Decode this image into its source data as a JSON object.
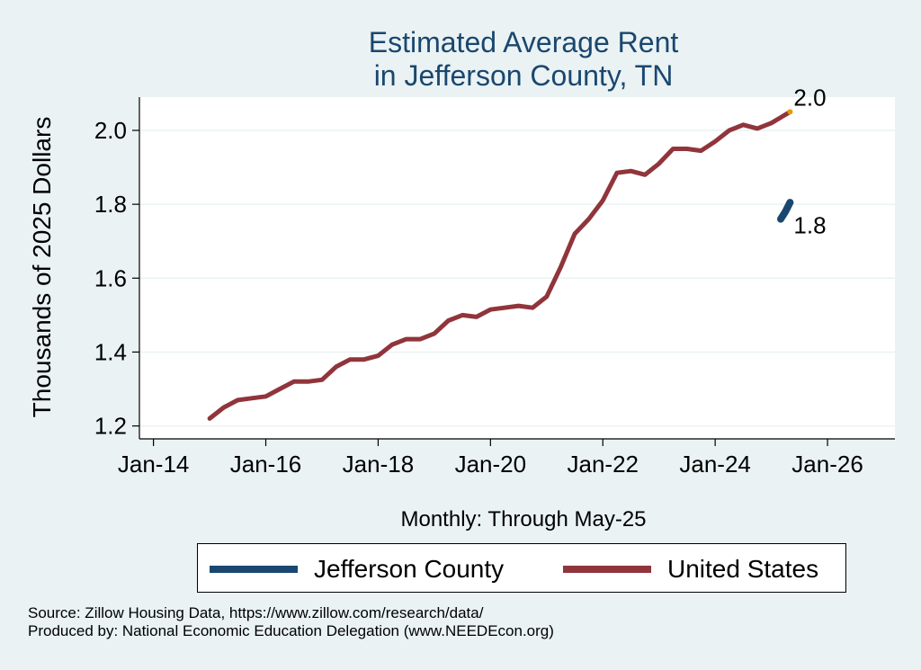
{
  "chart_data": {
    "type": "line",
    "title": [
      "Estimated Average Rent",
      "in Jefferson County, TN"
    ],
    "xlabel": "Monthly: Through May-25",
    "ylabel": "Thousands of 2025 Dollars",
    "xlim": [
      2013.75,
      2027.2
    ],
    "ylim": [
      1.165,
      2.09
    ],
    "x_ticks": [
      {
        "value": 2014,
        "label": "Jan-14"
      },
      {
        "value": 2016,
        "label": "Jan-16"
      },
      {
        "value": 2018,
        "label": "Jan-18"
      },
      {
        "value": 2020,
        "label": "Jan-20"
      },
      {
        "value": 2022,
        "label": "Jan-22"
      },
      {
        "value": 2024,
        "label": "Jan-24"
      },
      {
        "value": 2026,
        "label": "Jan-26"
      }
    ],
    "y_ticks": [
      {
        "value": 1.2,
        "label": "1.2"
      },
      {
        "value": 1.4,
        "label": "1.4"
      },
      {
        "value": 1.6,
        "label": "1.6"
      },
      {
        "value": 1.8,
        "label": "1.8"
      },
      {
        "value": 2.0,
        "label": "2.0"
      }
    ],
    "grid": true,
    "series": [
      {
        "name": "Jefferson County",
        "color": "#1a476f",
        "x": [
          2025.167,
          2025.25,
          2025.333
        ],
        "y": [
          1.76,
          1.78,
          1.805
        ],
        "end_label": "1.8"
      },
      {
        "name": "United States",
        "color": "#90353b",
        "x": [
          2015.0,
          2015.25,
          2015.5,
          2015.75,
          2016.0,
          2016.25,
          2016.5,
          2016.75,
          2017.0,
          2017.25,
          2017.5,
          2017.75,
          2018.0,
          2018.25,
          2018.5,
          2018.75,
          2019.0,
          2019.25,
          2019.5,
          2019.75,
          2020.0,
          2020.25,
          2020.5,
          2020.75,
          2021.0,
          2021.25,
          2021.5,
          2021.75,
          2022.0,
          2022.25,
          2022.5,
          2022.75,
          2023.0,
          2023.25,
          2023.5,
          2023.75,
          2024.0,
          2024.25,
          2024.5,
          2024.75,
          2025.0,
          2025.167,
          2025.333
        ],
        "y": [
          1.22,
          1.25,
          1.27,
          1.275,
          1.28,
          1.3,
          1.32,
          1.32,
          1.325,
          1.36,
          1.38,
          1.38,
          1.39,
          1.42,
          1.435,
          1.435,
          1.45,
          1.485,
          1.5,
          1.495,
          1.515,
          1.52,
          1.525,
          1.52,
          1.55,
          1.63,
          1.72,
          1.76,
          1.81,
          1.885,
          1.89,
          1.88,
          1.91,
          1.95,
          1.95,
          1.945,
          1.97,
          2.0,
          2.015,
          2.005,
          2.02,
          2.035,
          2.05
        ],
        "end_label": "2.0"
      }
    ],
    "legend": "bottom",
    "notes": [
      "Source: Zillow Housing Data, https://www.zillow.com/research/data/",
      "Produced by: National Economic Education Delegation (www.NEEDEcon.org)"
    ]
  },
  "colors": {
    "background": "#eaf2f3",
    "plot_background": "#ffffff",
    "title": "#1a476f",
    "endpoint_marker": "#e69900"
  }
}
